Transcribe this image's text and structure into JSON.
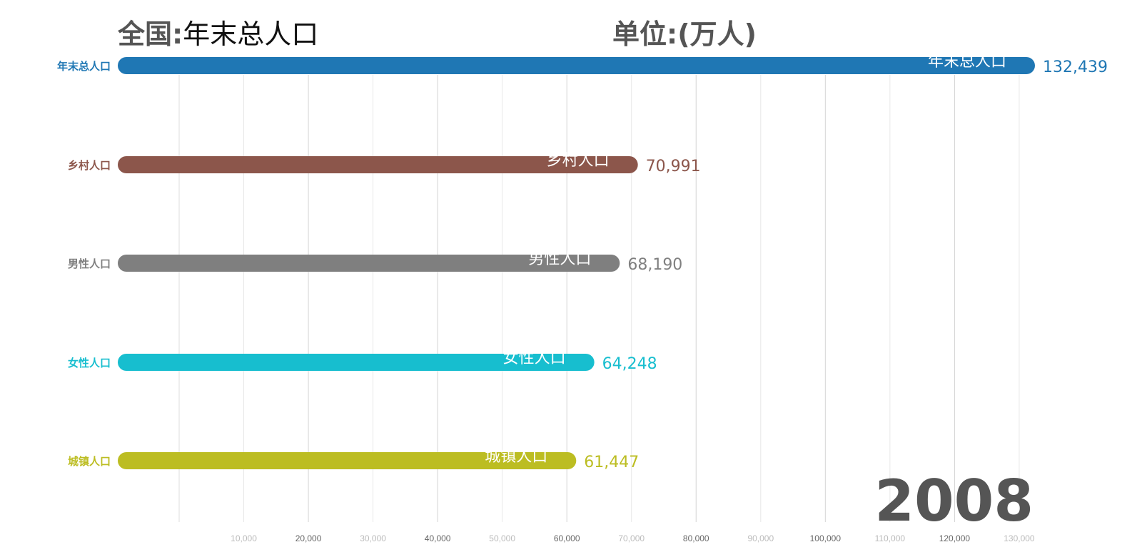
{
  "title": {
    "region": "全国",
    "separator": ":",
    "metric": "年末总人口",
    "unit": "单位:(万人)"
  },
  "chart_data": {
    "type": "bar",
    "orientation": "horizontal",
    "period": "2008",
    "categories": [
      "年末总人口",
      "乡村人口",
      "男性人口",
      "女性人口",
      "城镇人口"
    ],
    "values": [
      132439,
      70991,
      68190,
      64248,
      61447
    ],
    "value_labels": [
      "132,439",
      "70,991",
      "68,190",
      "64,248",
      "61,447"
    ],
    "colors": [
      "#1f77b4",
      "#8c564b",
      "#7f7f7f",
      "#17becf",
      "#bcbd22"
    ],
    "xlim": [
      0,
      132439
    ],
    "xticks": [
      10000,
      20000,
      30000,
      40000,
      50000,
      60000,
      70000,
      80000,
      90000,
      100000,
      110000,
      120000,
      130000
    ],
    "xtick_labels": [
      "10,000",
      "20,000",
      "30,000",
      "40,000",
      "50,000",
      "60,000",
      "70,000",
      "80,000",
      "90,000",
      "100,000",
      "110,000",
      "120,000",
      "130,000"
    ],
    "grid": true
  }
}
